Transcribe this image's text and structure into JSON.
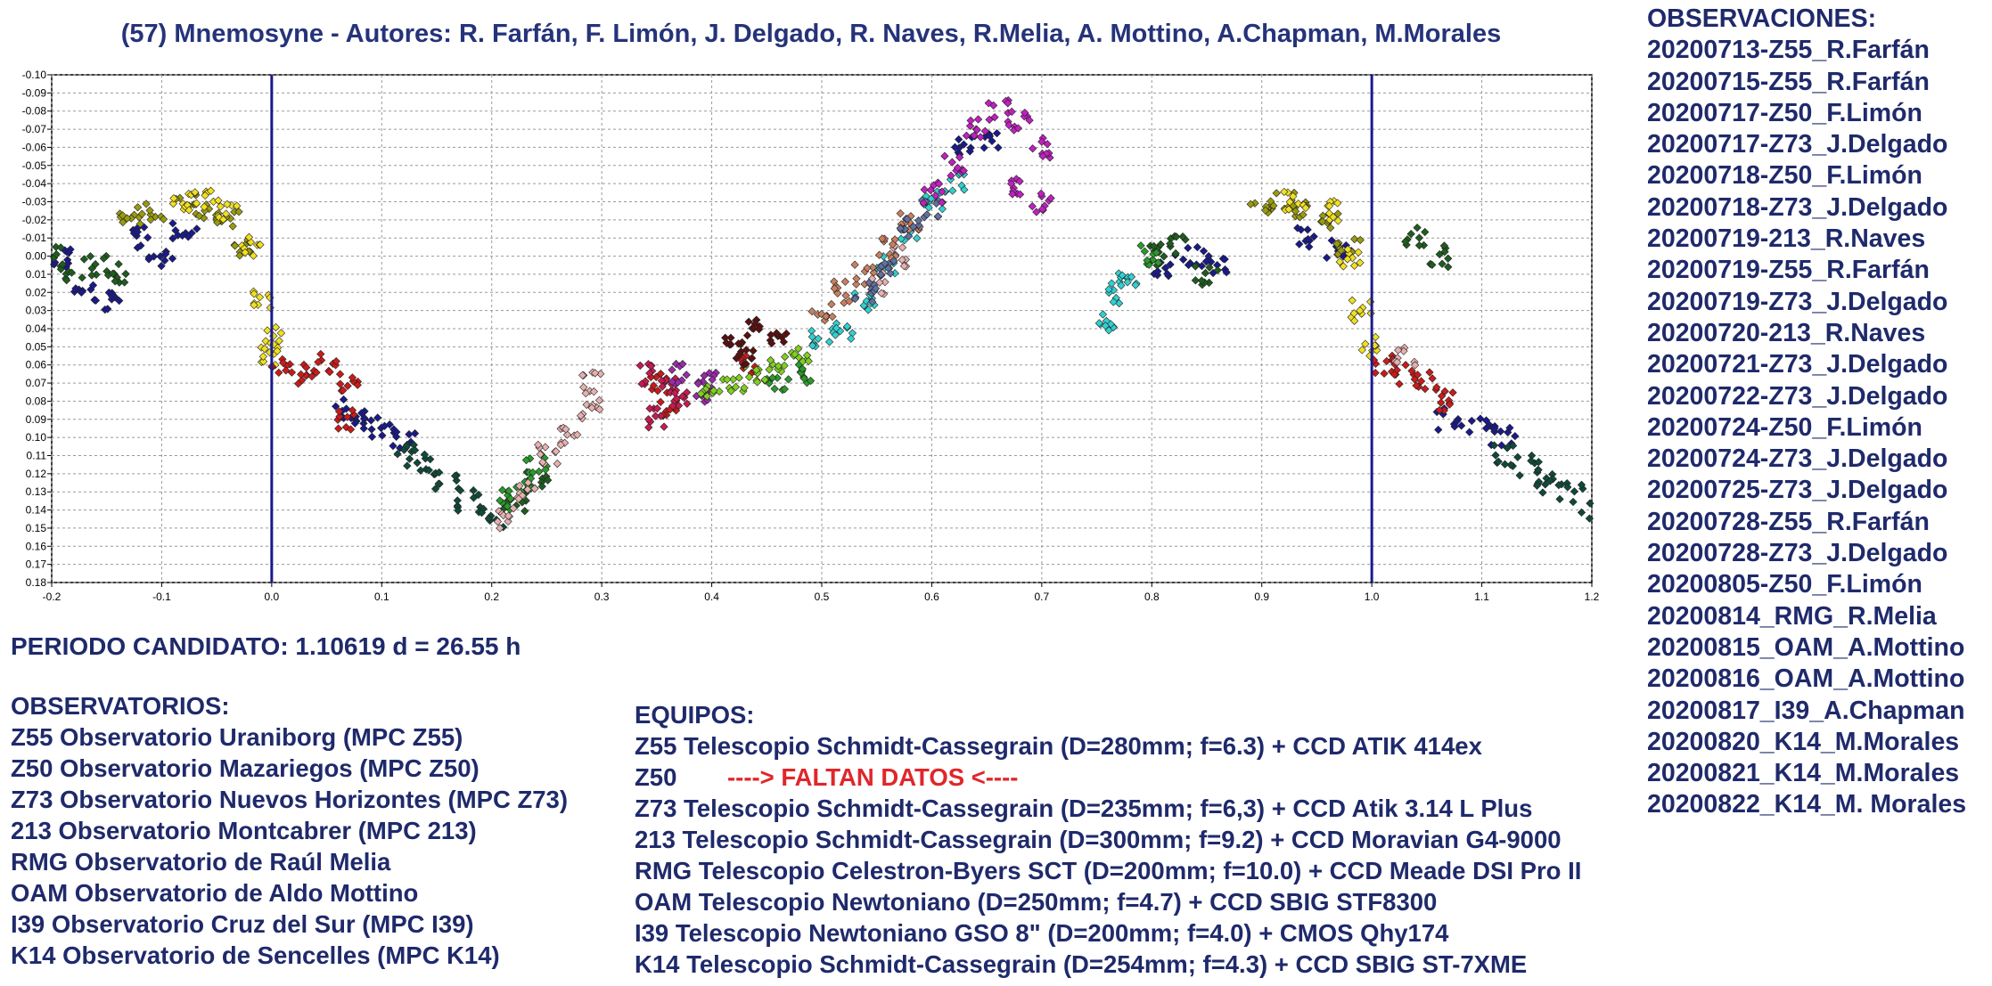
{
  "title": "(57) Mnemosyne - Autores: R. Farfán, F. Limón, J. Delgado, R. Naves, R.Melia, A. Mottino, A.Chapman, M.Morales",
  "observations": {
    "heading": "OBSERVACIONES:",
    "items": [
      "20200713-Z55_R.Farfán",
      "20200715-Z55_R.Farfán",
      "20200717-Z50_F.Limón",
      "20200717-Z73_J.Delgado",
      "20200718-Z50_F.Limón",
      "20200718-Z73_J.Delgado",
      "20200719-213_R.Naves",
      "20200719-Z55_R.Farfán",
      "20200719-Z73_J.Delgado",
      "20200720-213_R.Naves",
      "20200721-Z73_J.Delgado",
      "20200722-Z73_J.Delgado",
      "20200724-Z50_F.Limón",
      "20200724-Z73_J.Delgado",
      "20200725-Z73_J.Delgado",
      "20200728-Z55_R.Farfán",
      "20200728-Z73_J.Delgado",
      "20200805-Z50_F.Limón",
      "20200814_RMG_R.Melia",
      "20200815_OAM_A.Mottino",
      "20200816_OAM_A.Mottino",
      "20200817_I39_A.Chapman",
      "20200820_K14_M.Morales",
      "20200821_K14_M.Morales",
      "20200822_K14_M. Morales"
    ]
  },
  "period": "PERIODO CANDIDATO: 1.10619 d = 26.55 h",
  "observatories": {
    "heading": "OBSERVATORIOS:",
    "items": [
      "Z55 Observatorio Uraniborg (MPC Z55)",
      "Z50 Observatorio Mazariegos (MPC Z50)",
      "Z73 Observatorio Nuevos Horizontes (MPC Z73)",
      "213 Observatorio Montcabrer (MPC 213)",
      "RMG Observatorio de Raúl Melia",
      "OAM Observatorio de Aldo Mottino",
      "I39 Observatorio Cruz del Sur (MPC I39)",
      "K14 Observatorio de Sencelles (MPC K14)"
    ]
  },
  "equipment": {
    "heading": "EQUIPOS:",
    "z55": "Z55 Telescopio Schmidt-Cassegrain (D=280mm; f=6.3) + CCD ATIK 414ex",
    "z50_code": "Z50",
    "z50_missing": "----> FALTAN DATOS <----",
    "rest": [
      "Z73 Telescopio Schmidt-Cassegrain (D=235mm; f=6,3) + CCD Atik 3.14 L Plus",
      "213 Telescopio Schmidt-Cassegrain (D=300mm; f=9.2) + CCD Moravian G4-9000",
      "RMG Telescopio Celestron-Byers SCT (D=200mm; f=10.0) + CCD Meade DSI Pro II",
      "OAM Telescopio Newtoniano (D=250mm; f=4.7) + CCD SBIG STF8300",
      "I39 Telescopio Newtoniano GSO 8\" (D=200mm; f=4.0) + CMOS Qhy174",
      "K14 Telescopio Schmidt-Cassegrain (D=254mm; f=4.3) + CCD SBIG ST-7XME"
    ]
  },
  "colors": {
    "text": "#1f2a6b",
    "missing": "#e0262b",
    "phase_line": "#1a1a8c"
  },
  "chart_data": {
    "type": "scatter",
    "title": "",
    "xlabel": "",
    "ylabel": "",
    "xlim": [
      -0.2,
      1.2
    ],
    "ylim": [
      -0.1,
      0.18
    ],
    "y_inverted": true,
    "grid": true,
    "x_ticks": [
      "-0.2",
      "-0.1",
      "0.0",
      "0.1",
      "0.2",
      "0.3",
      "0.4",
      "0.5",
      "0.6",
      "0.7",
      "0.8",
      "0.9",
      "1.0",
      "1.1",
      "1.2"
    ],
    "y_ticks": [
      "-0.10",
      "-0.09",
      "-0.08",
      "-0.07",
      "-0.06",
      "-0.05",
      "-0.04",
      "-0.03",
      "-0.02",
      "-0.01",
      "0.00",
      "0.01",
      "0.02",
      "0.03",
      "0.04",
      "0.05",
      "0.06",
      "0.07",
      "0.08",
      "0.09",
      "0.10",
      "0.11",
      "0.12",
      "0.13",
      "0.14",
      "0.15",
      "0.16",
      "0.17",
      "0.18"
    ],
    "vertical_lines": [
      0.0,
      1.0
    ],
    "series": [
      {
        "name": "navy",
        "color": "#1a1a8c",
        "points": [
          [
            -0.19,
            0.0
          ],
          [
            -0.17,
            0.02
          ],
          [
            -0.15,
            0.025
          ],
          [
            -0.12,
            -0.01
          ],
          [
            -0.1,
            0.0
          ],
          [
            -0.08,
            -0.015
          ],
          [
            0.07,
            0.085
          ],
          [
            0.08,
            0.09
          ],
          [
            0.1,
            0.095
          ],
          [
            0.12,
            0.1
          ],
          [
            0.63,
            -0.06
          ],
          [
            0.65,
            -0.065
          ],
          [
            0.81,
            0.005
          ],
          [
            0.84,
            0.0
          ],
          [
            0.86,
            0.005
          ],
          [
            0.94,
            -0.01
          ],
          [
            0.97,
            -0.005
          ],
          [
            1.07,
            0.09
          ],
          [
            1.1,
            0.095
          ],
          [
            1.12,
            0.1
          ]
        ],
        "spread": [
          0.012,
          0.006
        ]
      },
      {
        "name": "darkgreen",
        "color": "#1e5d1e",
        "points": [
          [
            -0.2,
            0.0
          ],
          [
            -0.18,
            0.01
          ],
          [
            -0.16,
            0.005
          ],
          [
            -0.14,
            0.01
          ],
          [
            0.22,
            0.135
          ],
          [
            0.24,
            0.125
          ],
          [
            0.8,
            0.0
          ],
          [
            0.82,
            -0.005
          ],
          [
            0.85,
            0.01
          ],
          [
            1.04,
            -0.01
          ],
          [
            1.06,
            0.0
          ]
        ],
        "spread": [
          0.012,
          0.006
        ]
      },
      {
        "name": "olive",
        "color": "#9a9a10",
        "points": [
          [
            -0.13,
            -0.02
          ],
          [
            -0.11,
            -0.025
          ],
          [
            -0.08,
            -0.03
          ],
          [
            -0.06,
            -0.025
          ],
          [
            -0.04,
            -0.02
          ],
          [
            -0.03,
            -0.005
          ],
          [
            0.9,
            -0.025
          ],
          [
            0.92,
            -0.03
          ],
          [
            0.94,
            -0.025
          ],
          [
            0.96,
            -0.02
          ],
          [
            0.98,
            -0.005
          ]
        ],
        "spread": [
          0.012,
          0.005
        ]
      },
      {
        "name": "yellow",
        "color": "#f0e020",
        "points": [
          [
            -0.08,
            -0.03
          ],
          [
            -0.06,
            -0.03
          ],
          [
            -0.04,
            -0.025
          ],
          [
            -0.02,
            -0.005
          ],
          [
            -0.01,
            0.025
          ],
          [
            0.0,
            0.045
          ],
          [
            0.0,
            0.055
          ],
          [
            0.93,
            -0.03
          ],
          [
            0.96,
            -0.025
          ],
          [
            0.98,
            0.0
          ],
          [
            0.99,
            0.03
          ],
          [
            1.0,
            0.05
          ]
        ],
        "spread": [
          0.01,
          0.006
        ]
      },
      {
        "name": "red",
        "color": "#cc1a1a",
        "points": [
          [
            0.01,
            0.06
          ],
          [
            0.03,
            0.065
          ],
          [
            0.05,
            0.06
          ],
          [
            0.07,
            0.07
          ],
          [
            0.07,
            0.09
          ],
          [
            0.35,
            0.07
          ],
          [
            0.36,
            0.085
          ],
          [
            0.43,
            0.06
          ],
          [
            1.01,
            0.06
          ],
          [
            1.03,
            0.065
          ],
          [
            1.05,
            0.07
          ],
          [
            1.07,
            0.08
          ]
        ],
        "spread": [
          0.01,
          0.006
        ]
      },
      {
        "name": "teal",
        "color": "#0f4a3a",
        "points": [
          [
            0.12,
            0.11
          ],
          [
            0.14,
            0.115
          ],
          [
            0.16,
            0.125
          ],
          [
            0.18,
            0.135
          ],
          [
            0.2,
            0.145
          ],
          [
            1.12,
            0.11
          ],
          [
            1.14,
            0.115
          ],
          [
            1.16,
            0.125
          ],
          [
            1.18,
            0.13
          ],
          [
            1.2,
            0.14
          ]
        ],
        "spread": [
          0.012,
          0.006
        ]
      },
      {
        "name": "green",
        "color": "#2a9a2a",
        "points": [
          [
            0.21,
            0.135
          ],
          [
            0.23,
            0.125
          ],
          [
            0.24,
            0.115
          ],
          [
            0.46,
            0.07
          ],
          [
            0.48,
            0.065
          ],
          [
            0.8,
            0.0
          ]
        ],
        "spread": [
          0.01,
          0.006
        ]
      },
      {
        "name": "pink",
        "color": "#e7b0b0",
        "points": [
          [
            0.21,
            0.145
          ],
          [
            0.23,
            0.13
          ],
          [
            0.25,
            0.11
          ],
          [
            0.27,
            0.1
          ],
          [
            0.29,
            0.085
          ],
          [
            0.29,
            0.07
          ],
          [
            0.55,
            0.015
          ],
          [
            0.57,
            0.0
          ],
          [
            1.03,
            0.055
          ]
        ],
        "spread": [
          0.01,
          0.006
        ]
      },
      {
        "name": "crimson",
        "color": "#c81a50",
        "points": [
          [
            0.34,
            0.065
          ],
          [
            0.35,
            0.09
          ],
          [
            0.36,
            0.07
          ],
          [
            0.37,
            0.08
          ]
        ],
        "spread": [
          0.008,
          0.006
        ]
      },
      {
        "name": "purple",
        "color": "#9a2aaa",
        "points": [
          [
            0.37,
            0.065
          ],
          [
            0.39,
            0.075
          ],
          [
            0.4,
            0.07
          ]
        ],
        "spread": [
          0.008,
          0.006
        ]
      },
      {
        "name": "lime",
        "color": "#80d020",
        "points": [
          [
            0.4,
            0.075
          ],
          [
            0.42,
            0.07
          ],
          [
            0.44,
            0.065
          ],
          [
            0.46,
            0.06
          ],
          [
            0.48,
            0.055
          ]
        ],
        "spread": [
          0.01,
          0.005
        ]
      },
      {
        "name": "darkred",
        "color": "#5a1010",
        "points": [
          [
            0.42,
            0.045
          ],
          [
            0.44,
            0.04
          ],
          [
            0.46,
            0.045
          ],
          [
            0.43,
            0.055
          ]
        ],
        "spread": [
          0.008,
          0.005
        ]
      },
      {
        "name": "cyan",
        "color": "#30d0d0",
        "points": [
          [
            0.5,
            0.045
          ],
          [
            0.52,
            0.04
          ],
          [
            0.54,
            0.025
          ],
          [
            0.56,
            0.005
          ],
          [
            0.58,
            -0.01
          ],
          [
            0.6,
            -0.03
          ],
          [
            0.62,
            -0.04
          ],
          [
            0.76,
            0.035
          ],
          [
            0.77,
            0.02
          ],
          [
            0.78,
            0.01
          ]
        ],
        "spread": [
          0.01,
          0.006
        ]
      },
      {
        "name": "salmon",
        "color": "#c88060",
        "points": [
          [
            0.5,
            0.03
          ],
          [
            0.52,
            0.02
          ],
          [
            0.54,
            0.01
          ],
          [
            0.56,
            -0.005
          ],
          [
            0.58,
            -0.02
          ]
        ],
        "spread": [
          0.01,
          0.006
        ]
      },
      {
        "name": "slate",
        "color": "#6070a0",
        "points": [
          [
            0.54,
            0.02
          ],
          [
            0.56,
            0.005
          ],
          [
            0.58,
            -0.015
          ],
          [
            0.6,
            -0.025
          ]
        ],
        "spread": [
          0.01,
          0.006
        ]
      },
      {
        "name": "magenta",
        "color": "#c020c0",
        "points": [
          [
            0.6,
            -0.035
          ],
          [
            0.62,
            -0.05
          ],
          [
            0.64,
            -0.07
          ],
          [
            0.66,
            -0.08
          ],
          [
            0.68,
            -0.075
          ],
          [
            0.7,
            -0.06
          ],
          [
            0.68,
            -0.04
          ],
          [
            0.7,
            -0.03
          ]
        ],
        "spread": [
          0.01,
          0.006
        ]
      }
    ]
  }
}
